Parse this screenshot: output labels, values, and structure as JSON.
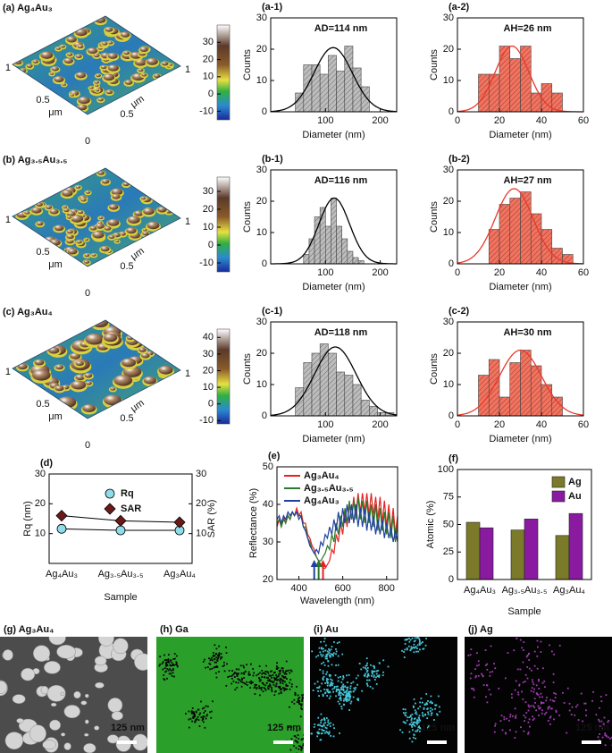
{
  "afm": [
    {
      "label": "(a) Ag₄Au₃",
      "axis_labels": [
        "1",
        "0.5",
        "μm",
        "0",
        "0.5",
        "μm",
        "1"
      ]
    },
    {
      "label": "(b) Ag₃.₅Au₃.₅",
      "axis_labels": [
        "1",
        "0.5",
        "μm",
        "0",
        "0.5",
        "μm",
        "1"
      ]
    },
    {
      "label": "(c) Ag₃Au₄",
      "axis_labels": [
        "1",
        "0.5",
        "μm",
        "0",
        "0.5",
        "μm",
        "1"
      ]
    }
  ],
  "chart_data": [
    {
      "type": "histogram",
      "panel": "(a-1)",
      "annotation": "AD=114 nm",
      "xlabel": "Diameter (nm)",
      "ylabel": "Counts",
      "bins": [
        45,
        60,
        75,
        90,
        105,
        120,
        135,
        150,
        165,
        180
      ],
      "values": [
        6,
        15,
        15,
        12,
        18,
        13,
        21,
        14,
        8
      ],
      "color": "#bdbdbd",
      "xlim": [
        0,
        230
      ],
      "xticks": [
        100,
        200
      ],
      "ylim": [
        0,
        30
      ],
      "yticks": [
        0,
        10,
        20,
        30
      ],
      "fit": {
        "mean": 114,
        "sd": 35,
        "peak": 20.5,
        "color": "#000000"
      }
    },
    {
      "type": "histogram",
      "panel": "(a-2)",
      "annotation": "AH=26 nm",
      "xlabel": "Diameter (nm)",
      "ylabel": "Counts",
      "bins": [
        10,
        15,
        20,
        25,
        30,
        35,
        40,
        45,
        50
      ],
      "values": [
        12,
        12,
        21,
        17,
        21,
        6,
        9,
        6
      ],
      "color": "#f4735f",
      "xlim": [
        0,
        60
      ],
      "xticks": [
        0,
        20,
        40,
        60
      ],
      "ylim": [
        0,
        30
      ],
      "yticks": [
        0,
        10,
        20,
        30
      ],
      "fit": {
        "mean": 26,
        "sd": 8,
        "peak": 21,
        "color": "#e8392b"
      }
    },
    {
      "type": "histogram",
      "panel": "(b-1)",
      "annotation": "AD=116 nm",
      "xlabel": "Diameter (nm)",
      "ylabel": "Counts",
      "bins": [
        60,
        70,
        80,
        90,
        100,
        110,
        120,
        130,
        140,
        150,
        160,
        170
      ],
      "values": [
        3,
        8,
        15,
        18,
        12,
        21,
        12,
        8,
        4,
        2,
        1
      ],
      "color": "#bdbdbd",
      "xlim": [
        0,
        230
      ],
      "xticks": [
        100,
        200
      ],
      "ylim": [
        0,
        30
      ],
      "yticks": [
        0,
        10,
        20,
        30
      ],
      "fit": {
        "mean": 116,
        "sd": 28,
        "peak": 21,
        "color": "#000000"
      }
    },
    {
      "type": "histogram",
      "panel": "(b-2)",
      "annotation": "AH=27 nm",
      "xlabel": "Diameter (nm)",
      "ylabel": "Counts",
      "bins": [
        15,
        20,
        25,
        30,
        35,
        40,
        45,
        50,
        55
      ],
      "values": [
        11,
        19,
        21,
        23,
        16,
        11,
        5,
        3
      ],
      "color": "#f4735f",
      "xlim": [
        0,
        60
      ],
      "xticks": [
        0,
        20,
        40,
        60
      ],
      "ylim": [
        0,
        30
      ],
      "yticks": [
        0,
        10,
        20,
        30
      ],
      "fit": {
        "mean": 27,
        "sd": 9,
        "peak": 24,
        "color": "#e8392b"
      }
    },
    {
      "type": "histogram",
      "panel": "(c-1)",
      "annotation": "AD=118 nm",
      "xlabel": "Diameter (nm)",
      "ylabel": "Counts",
      "bins": [
        45,
        60,
        75,
        90,
        105,
        120,
        135,
        150,
        165,
        180,
        195,
        210,
        225
      ],
      "values": [
        9,
        17,
        20,
        23,
        20,
        14,
        13,
        10,
        5,
        3,
        1,
        1
      ],
      "color": "#bdbdbd",
      "xlim": [
        0,
        230
      ],
      "xticks": [
        100,
        200
      ],
      "ylim": [
        0,
        30
      ],
      "yticks": [
        0,
        10,
        20,
        30
      ],
      "fit": {
        "mean": 118,
        "sd": 38,
        "peak": 22,
        "color": "#000000"
      }
    },
    {
      "type": "histogram",
      "panel": "(c-2)",
      "annotation": "AH=30 nm",
      "xlabel": "Diameter (nm)",
      "ylabel": "Counts",
      "bins": [
        10,
        15,
        20,
        25,
        30,
        35,
        40,
        45,
        50
      ],
      "values": [
        13,
        18,
        6,
        17,
        21,
        16,
        10,
        6
      ],
      "color": "#f4735f",
      "xlim": [
        0,
        60
      ],
      "xticks": [
        0,
        20,
        40,
        60
      ],
      "ylim": [
        0,
        30
      ],
      "yticks": [
        0,
        10,
        20,
        30
      ],
      "fit": {
        "mean": 30,
        "sd": 10,
        "peak": 21,
        "color": "#e8392b"
      }
    },
    {
      "type": "dualline",
      "panel": "(d)",
      "xlabel": "Sample",
      "ylabel": "Rq (nm)",
      "y2label": "SAR (%)",
      "categories": [
        "Ag₄Au₃",
        "Ag₃.₅Au₃.₅",
        "Ag₃Au₄"
      ],
      "ylim": [
        0,
        30
      ],
      "yticks": [
        10,
        20,
        30
      ],
      "y2lim": [
        0,
        30
      ],
      "y2ticks": [
        10,
        20,
        30
      ],
      "series": [
        {
          "name": "Rq",
          "color": "#8fdcea",
          "marker": "circle",
          "values": [
            11.6,
            11.1,
            11.1
          ]
        },
        {
          "name": "SAR",
          "color": "#6b1a1a",
          "marker": "diamond",
          "axis": "y2",
          "values": [
            16,
            14.3,
            13.8
          ]
        }
      ]
    },
    {
      "type": "line",
      "panel": "(e)",
      "xlabel": "Wavelength (nm)",
      "ylabel": "Reflectance (%)",
      "xlim": [
        300,
        850
      ],
      "xticks": [
        400,
        600,
        800
      ],
      "ylim": [
        20,
        50
      ],
      "yticks": [
        20,
        30,
        40,
        50
      ],
      "x": [
        300,
        310,
        320,
        330,
        340,
        350,
        360,
        370,
        380,
        390,
        400,
        410,
        420,
        430,
        440,
        450,
        460,
        470,
        480,
        490,
        500,
        510,
        520,
        530,
        540,
        550,
        560,
        570,
        580,
        590,
        600,
        610,
        620,
        630,
        640,
        650,
        660,
        670,
        680,
        690,
        700,
        710,
        720,
        730,
        740,
        750,
        760,
        770,
        780,
        790,
        800,
        810,
        820,
        830,
        840,
        850
      ],
      "series": [
        {
          "name": "Ag₃Au₄",
          "color": "#e52222",
          "arrow_x": 510,
          "values": [
            34,
            36,
            34,
            37,
            35,
            37,
            36,
            38,
            37,
            39,
            37,
            38,
            35,
            35,
            32,
            31,
            29,
            28,
            26,
            25,
            24,
            23,
            23,
            24,
            25,
            28,
            27,
            32,
            30,
            35,
            32,
            38,
            34,
            40,
            36,
            42,
            37,
            43,
            38,
            43,
            38,
            43,
            37,
            43,
            37,
            42,
            36,
            42,
            35,
            41,
            34,
            40,
            33,
            39,
            32,
            37
          ]
        },
        {
          "name": "Ag₃.₅Au₃.₅",
          "color": "#2a7a2a",
          "arrow_x": 490,
          "values": [
            35,
            36,
            34,
            36,
            35,
            37,
            36,
            38,
            37,
            38,
            37,
            37,
            34,
            34,
            31,
            30,
            28,
            27,
            26,
            25,
            25,
            26,
            27,
            29,
            28,
            32,
            30,
            35,
            32,
            37,
            34,
            39,
            35,
            41,
            36,
            41,
            36,
            42,
            36,
            41,
            35,
            41,
            35,
            40,
            34,
            40,
            33,
            39,
            33,
            38,
            32,
            38,
            31,
            37,
            30,
            35
          ]
        },
        {
          "name": "Ag₄Au₃",
          "color": "#2040a0",
          "arrow_x": 470,
          "values": [
            36,
            37,
            35,
            37,
            36,
            38,
            37,
            38,
            37,
            38,
            36,
            37,
            34,
            33,
            31,
            29,
            28,
            27,
            28,
            27,
            30,
            29,
            32,
            31,
            34,
            32,
            36,
            33,
            38,
            34,
            39,
            35,
            40,
            35,
            40,
            35,
            40,
            34,
            39,
            34,
            39,
            33,
            38,
            33,
            37,
            32,
            36,
            32,
            36,
            31,
            35,
            31,
            34,
            30,
            33,
            30
          ]
        }
      ]
    },
    {
      "type": "bar",
      "panel": "(f)",
      "xlabel": "Sample",
      "ylabel": "Atomic (%)",
      "categories": [
        "Ag₄Au₃",
        "Ag₃.₅Au₃.₅",
        "Ag₃Au₄"
      ],
      "ylim": [
        0,
        100
      ],
      "yticks": [
        0,
        25,
        50,
        75,
        100
      ],
      "series": [
        {
          "name": "Ag",
          "color": "#7a7a2a",
          "values": [
            52,
            45,
            40
          ]
        },
        {
          "name": "Au",
          "color": "#8a1aa0",
          "values": [
            47,
            55,
            60
          ]
        }
      ]
    },
    {
      "type": "colorbar",
      "ylim": [
        -15,
        40
      ],
      "yticks": [
        -10,
        0,
        10,
        20,
        30
      ]
    },
    {
      "type": "colorbar",
      "ylim": [
        -15,
        38
      ],
      "yticks": [
        -10,
        0,
        10,
        20,
        30
      ]
    },
    {
      "type": "colorbar",
      "ylim": [
        -12,
        45
      ],
      "yticks": [
        -10,
        0,
        10,
        20,
        30,
        40
      ]
    }
  ],
  "micrographs": [
    {
      "label": "(g) Ag₃Au₄",
      "scale_bar": "125 nm"
    },
    {
      "label": "(h) Ga",
      "scale_bar": "125 nm"
    },
    {
      "label": "(i) Au",
      "scale_bar": "125 nm"
    },
    {
      "label": "(j) Ag",
      "scale_bar": "125 nm"
    }
  ]
}
